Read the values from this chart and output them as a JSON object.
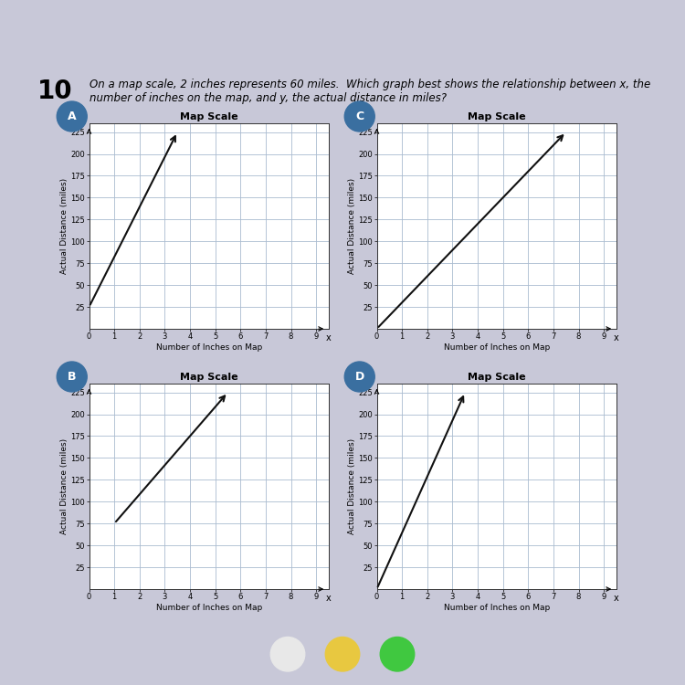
{
  "question_number": "10",
  "question_text": "On a map scale, 2 inches represents 60 miles.  Which graph best shows the relationship between x, the\nnumber of inches on the map, and y, the actual distance in miles?",
  "outer_bg": "#c8c8d8",
  "paper_bg": "#f0ede5",
  "taskbar_color": "#5a5a8a",
  "graph_bg": "#ffffff",
  "grid_color": "#aabbd0",
  "axis_color": "#333333",
  "graph_title": "Map Scale",
  "xlabel": "Number of Inches on Map",
  "ylabel": "Actual Distance (miles)",
  "x_ticks": [
    0,
    1,
    2,
    3,
    4,
    5,
    6,
    7,
    8,
    9
  ],
  "y_ticks": [
    25,
    50,
    75,
    100,
    125,
    150,
    175,
    200,
    225
  ],
  "xlim": [
    0,
    9.5
  ],
  "ylim": [
    0,
    235
  ],
  "panels": [
    {
      "label": "A",
      "label_color": "#3a6fa0",
      "line_x": [
        0,
        3.5
      ],
      "line_y": [
        25,
        225
      ],
      "line_color": "#111111",
      "line_width": 1.5
    },
    {
      "label": "C",
      "label_color": "#3a6fa0",
      "line_x": [
        0,
        7.5
      ],
      "line_y": [
        0,
        225
      ],
      "line_color": "#111111",
      "line_width": 1.5
    },
    {
      "label": "B",
      "label_color": "#3a6fa0",
      "line_x": [
        1,
        5.5
      ],
      "line_y": [
        75,
        225
      ],
      "line_color": "#111111",
      "line_width": 1.5
    },
    {
      "label": "D",
      "label_color": "#3a6fa0",
      "line_x": [
        0,
        3.5
      ],
      "line_y": [
        0,
        225
      ],
      "line_color": "#111111",
      "line_width": 1.5
    }
  ]
}
